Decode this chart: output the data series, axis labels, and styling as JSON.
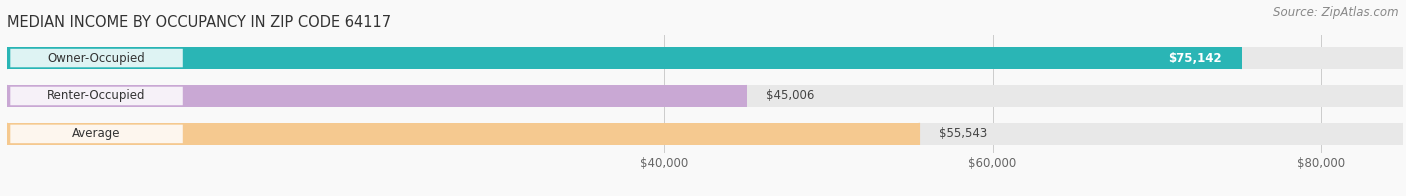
{
  "title": "MEDIAN INCOME BY OCCUPANCY IN ZIP CODE 64117",
  "source": "Source: ZipAtlas.com",
  "categories": [
    "Owner-Occupied",
    "Renter-Occupied",
    "Average"
  ],
  "values": [
    75142,
    45006,
    55543
  ],
  "bar_colors": [
    "#2ab5b5",
    "#c9a8d4",
    "#f5c990"
  ],
  "bar_bg_color": "#e8e8e8",
  "value_labels": [
    "$75,142",
    "$45,006",
    "$55,543"
  ],
  "xlim_min": 0,
  "xlim_max": 85000,
  "display_min": 30000,
  "xtick_values": [
    40000,
    60000,
    80000
  ],
  "xtick_labels": [
    "$40,000",
    "$60,000",
    "$80,000"
  ],
  "background_color": "#f9f9f9",
  "title_fontsize": 10.5,
  "source_fontsize": 8.5,
  "bar_label_fontsize": 8.5,
  "value_label_fontsize": 8.5,
  "bar_height": 0.58,
  "value_label_colors": [
    "white",
    "#555555",
    "#555555"
  ]
}
